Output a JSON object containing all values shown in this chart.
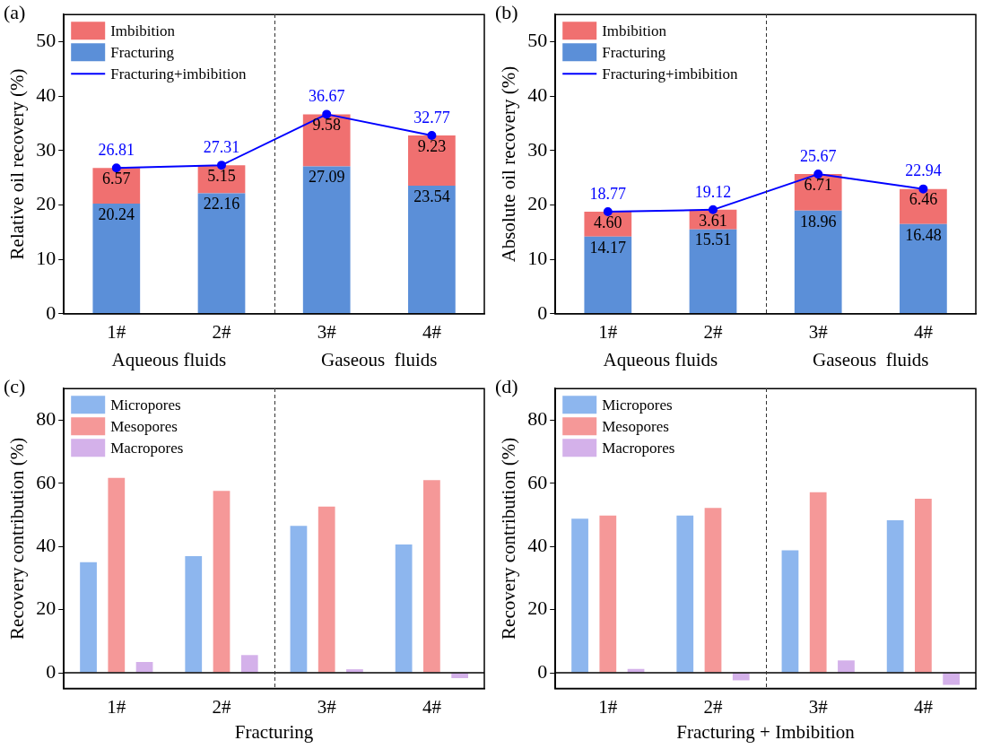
{
  "chart_data": [
    {
      "type": "bar",
      "title": "(a)",
      "ylabel": "Relative oil recovery (%)",
      "categories": [
        "1#",
        "2#",
        "3#",
        "4#"
      ],
      "stacked": true,
      "ylim": [
        0,
        55
      ],
      "yticks": [
        0,
        10,
        20,
        30,
        40,
        50
      ],
      "grid": false,
      "legend": "top left",
      "annotations": [
        "Aqueous fluids",
        "Gaseous  fluids"
      ],
      "series": [
        {
          "name": "Fracturing",
          "color": "#5b8fd8",
          "values": [
            20.24,
            22.16,
            27.09,
            23.54
          ],
          "value_labels": [
            "20.24",
            "22.16",
            "27.09",
            "23.54"
          ]
        },
        {
          "name": "Imbibition",
          "color": "#f07070",
          "values": [
            6.57,
            5.15,
            9.58,
            9.23
          ],
          "value_labels": [
            "6.57",
            "5.15",
            "9.58",
            "9.23"
          ]
        },
        {
          "name": "Fracturing+imbibition",
          "type": "line",
          "color": "#0000ff",
          "marker": "circle",
          "values": [
            26.81,
            27.31,
            36.67,
            32.77
          ],
          "value_labels": [
            "26.81",
            "27.31",
            "36.67",
            "32.77"
          ]
        }
      ]
    },
    {
      "type": "bar",
      "title": "(b)",
      "ylabel": "Absolute oil recovery (%)",
      "categories": [
        "1#",
        "2#",
        "3#",
        "4#"
      ],
      "stacked": true,
      "ylim": [
        0,
        55
      ],
      "yticks": [
        0,
        10,
        20,
        30,
        40,
        50
      ],
      "grid": false,
      "legend": "top left",
      "annotations": [
        "Aqueous fluids",
        "Gaseous  fluids"
      ],
      "series": [
        {
          "name": "Fracturing",
          "color": "#5b8fd8",
          "values": [
            14.17,
            15.51,
            18.96,
            16.48
          ],
          "value_labels": [
            "14.17",
            "15.51",
            "18.96",
            "16.48"
          ]
        },
        {
          "name": "Imbibition",
          "color": "#f07070",
          "values": [
            4.6,
            3.61,
            6.71,
            6.46
          ],
          "value_labels": [
            "4.60",
            "3.61",
            "6.71",
            "6.46"
          ]
        },
        {
          "name": "Fracturing+imbibition",
          "type": "line",
          "color": "#0000ff",
          "marker": "circle",
          "values": [
            18.77,
            19.12,
            25.67,
            22.94
          ],
          "value_labels": [
            "18.77",
            "19.12",
            "25.67",
            "22.94"
          ]
        }
      ]
    },
    {
      "type": "bar",
      "title": "(c)",
      "ylabel": "Recovery contribution (%)",
      "xlabel": "Fracturing",
      "categories": [
        "1#",
        "2#",
        "3#",
        "4#"
      ],
      "ylim": [
        -5,
        90
      ],
      "yticks": [
        0,
        20,
        40,
        60,
        80
      ],
      "grid": false,
      "legend": "top left",
      "ref_lines": [
        {
          "axis": "y",
          "value": 0,
          "line_style": "solid",
          "color": "#000000"
        }
      ],
      "series": [
        {
          "name": "Micropores",
          "color": "#8db6ee",
          "values": [
            35.0,
            36.9,
            46.5,
            40.6
          ]
        },
        {
          "name": "Mesopores",
          "color": "#f59898",
          "values": [
            61.7,
            57.6,
            52.6,
            61.0
          ]
        },
        {
          "name": "Macropores",
          "color": "#d4b1ea",
          "values": [
            3.4,
            5.6,
            1.1,
            -1.7
          ]
        }
      ]
    },
    {
      "type": "bar",
      "title": "(d)",
      "ylabel": "Recovery contribution (%)",
      "xlabel": "Fracturing + Imbibition",
      "categories": [
        "1#",
        "2#",
        "3#",
        "4#"
      ],
      "ylim": [
        -5,
        90
      ],
      "yticks": [
        0,
        20,
        40,
        60,
        80
      ],
      "grid": false,
      "legend": "top left",
      "ref_lines": [
        {
          "axis": "y",
          "value": 0,
          "line_style": "solid",
          "color": "#000000"
        }
      ],
      "series": [
        {
          "name": "Micropores",
          "color": "#8db6ee",
          "values": [
            48.8,
            49.8,
            38.8,
            48.3
          ]
        },
        {
          "name": "Mesopores",
          "color": "#f59898",
          "values": [
            49.8,
            52.2,
            57.2,
            55.1
          ]
        },
        {
          "name": "Macropores",
          "color": "#d4b1ea",
          "values": [
            1.2,
            -2.4,
            3.9,
            -3.8
          ]
        }
      ]
    }
  ]
}
